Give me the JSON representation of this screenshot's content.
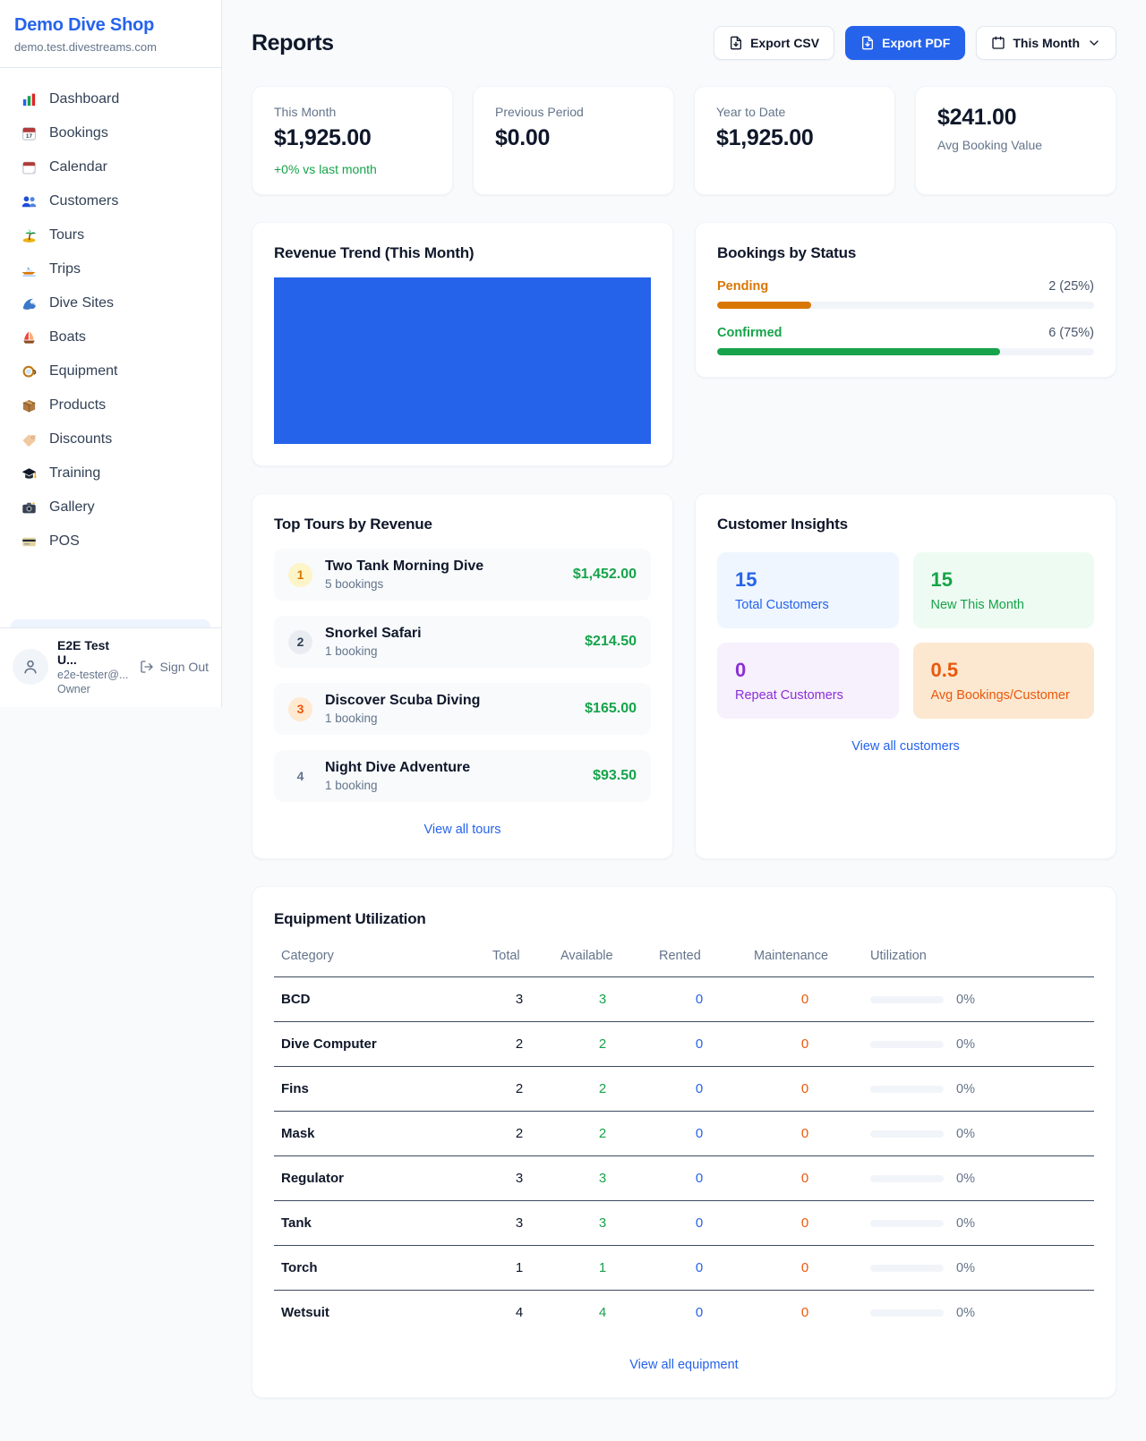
{
  "sidebar": {
    "shop_name": "Demo Dive Shop",
    "shop_domain": "demo.test.divestreams.com",
    "items": [
      {
        "icon": "bar-chart",
        "label": "Dashboard"
      },
      {
        "icon": "calendar-date",
        "label": "Bookings"
      },
      {
        "icon": "tear-calendar",
        "label": "Calendar"
      },
      {
        "icon": "people",
        "label": "Customers"
      },
      {
        "icon": "island",
        "label": "Tours"
      },
      {
        "icon": "speedboat",
        "label": "Trips"
      },
      {
        "icon": "wave",
        "label": "Dive Sites"
      },
      {
        "icon": "sailboat",
        "label": "Boats"
      },
      {
        "icon": "dive-mask",
        "label": "Equipment"
      },
      {
        "icon": "package",
        "label": "Products"
      },
      {
        "icon": "tag",
        "label": "Discounts"
      },
      {
        "icon": "grad-cap",
        "label": "Training"
      },
      {
        "icon": "camera",
        "label": "Gallery"
      },
      {
        "icon": "credit-card",
        "label": "POS"
      }
    ],
    "user": {
      "name": "E2E Test U...",
      "email": "e2e-tester@...",
      "role": "Owner",
      "sign_out_label": "Sign Out"
    }
  },
  "header": {
    "title": "Reports",
    "export_csv_label": "Export CSV",
    "export_pdf_label": "Export PDF",
    "period_label": "This Month"
  },
  "stats": [
    {
      "label": "This Month",
      "value": "$1,925.00",
      "delta": "+0% vs last month"
    },
    {
      "label": "Previous Period",
      "value": "$0.00"
    },
    {
      "label": "Year to Date",
      "value": "$1,925.00"
    },
    {
      "label": "Avg Booking Value",
      "value": "$241.00"
    }
  ],
  "revenue_trend": {
    "title": "Revenue Trend (This Month)",
    "fill_color": "#2563eb"
  },
  "bookings_by_status": {
    "title": "Bookings by Status",
    "statuses": [
      {
        "label": "Pending",
        "value": "2 (25%)",
        "pct": 25,
        "color": "#d97706"
      },
      {
        "label": "Confirmed",
        "value": "6 (75%)",
        "pct": 75,
        "color": "#16a34a"
      }
    ]
  },
  "top_tours": {
    "title": "Top Tours by Revenue",
    "view_all_label": "View all tours",
    "tours": [
      {
        "rank": "1",
        "name": "Two Tank Morning Dive",
        "bookings": "5 bookings",
        "revenue": "$1,452.00"
      },
      {
        "rank": "2",
        "name": "Snorkel Safari",
        "bookings": "1 booking",
        "revenue": "$214.50"
      },
      {
        "rank": "3",
        "name": "Discover Scuba Diving",
        "bookings": "1 booking",
        "revenue": "$165.00"
      },
      {
        "rank": "4",
        "name": "Night Dive Adventure",
        "bookings": "1 booking",
        "revenue": "$93.50"
      }
    ]
  },
  "customer_insights": {
    "title": "Customer Insights",
    "view_all_label": "View all customers",
    "tiles": [
      {
        "value": "15",
        "label": "Total Customers",
        "color": "#2563eb"
      },
      {
        "value": "15",
        "label": "New This Month",
        "color": "#16a34a"
      },
      {
        "value": "0",
        "label": "Repeat Customers",
        "color": "#8b2fd6"
      },
      {
        "value": "0.5",
        "label": "Avg Bookings/Customer",
        "color": "#ea580c"
      }
    ]
  },
  "equipment": {
    "title": "Equipment Utilization",
    "view_all_label": "View all equipment",
    "columns": [
      "Category",
      "Total",
      "Available",
      "Rented",
      "Maintenance",
      "Utilization"
    ],
    "rows": [
      {
        "category": "BCD",
        "total": "3",
        "available": "3",
        "rented": "0",
        "maintenance": "0",
        "utilization": "0%",
        "utilization_pct": 0
      },
      {
        "category": "Dive Computer",
        "total": "2",
        "available": "2",
        "rented": "0",
        "maintenance": "0",
        "utilization": "0%",
        "utilization_pct": 0
      },
      {
        "category": "Fins",
        "total": "2",
        "available": "2",
        "rented": "0",
        "maintenance": "0",
        "utilization": "0%",
        "utilization_pct": 0
      },
      {
        "category": "Mask",
        "total": "2",
        "available": "2",
        "rented": "0",
        "maintenance": "0",
        "utilization": "0%",
        "utilization_pct": 0
      },
      {
        "category": "Regulator",
        "total": "3",
        "available": "3",
        "rented": "0",
        "maintenance": "0",
        "utilization": "0%",
        "utilization_pct": 0
      },
      {
        "category": "Tank",
        "total": "3",
        "available": "3",
        "rented": "0",
        "maintenance": "0",
        "utilization": "0%",
        "utilization_pct": 0
      },
      {
        "category": "Torch",
        "total": "1",
        "available": "1",
        "rented": "0",
        "maintenance": "0",
        "utilization": "0%",
        "utilization_pct": 0
      },
      {
        "category": "Wetsuit",
        "total": "4",
        "available": "4",
        "rented": "0",
        "maintenance": "0",
        "utilization": "0%",
        "utilization_pct": 0
      }
    ]
  }
}
